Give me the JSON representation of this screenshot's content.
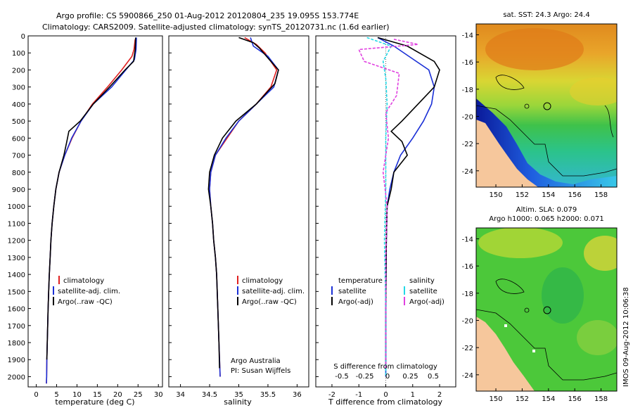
{
  "header": {
    "line1": "Argo profile: CS 5900866_250 01-Aug-2012 20120804_235 19.095S 153.774E",
    "line2": "Climatology: CARS2009. Satellite-adjusted climatology: synTS_20120731.nc (1.6d earlier)"
  },
  "side_stamp": "IMOS 09-Aug-2012 10:06:38",
  "colors": {
    "climatology": "#e02020",
    "satellite": "#1a2fd6",
    "argo": "#000000",
    "sat_s": "#22d8e6",
    "argo_s": "#e040e0",
    "land": "#f6c79c"
  },
  "chart_data": [
    {
      "type": "line",
      "name": "temperature-profile",
      "xlabel": "temperature (deg C)",
      "ylabel": "",
      "xlim": [
        -2,
        31
      ],
      "ylim": [
        2060,
        0
      ],
      "xticks": [
        0,
        5,
        10,
        15,
        20,
        25,
        30
      ],
      "yticks": [
        0,
        100,
        200,
        300,
        400,
        500,
        600,
        700,
        800,
        900,
        1000,
        1100,
        1200,
        1300,
        1400,
        1500,
        1600,
        1700,
        1800,
        1900,
        2000
      ],
      "legend": [
        "climatology",
        "satellite-adj. clim.",
        "Argo(..raw -QC)"
      ],
      "series": [
        {
          "name": "climatology",
          "color": "#e02020",
          "points": [
            [
              24.3,
              20
            ],
            [
              24.0,
              80
            ],
            [
              23.5,
              120
            ],
            [
              21.0,
              200
            ],
            [
              17.5,
              300
            ],
            [
              13.8,
              400
            ],
            [
              11.0,
              500
            ],
            [
              8.8,
              600
            ],
            [
              7.0,
              700
            ],
            [
              5.6,
              800
            ],
            [
              4.8,
              900
            ],
            [
              4.3,
              1000
            ],
            [
              3.9,
              1100
            ],
            [
              3.6,
              1200
            ],
            [
              3.4,
              1300
            ],
            [
              3.2,
              1400
            ],
            [
              3.05,
              1500
            ],
            [
              2.9,
              1600
            ],
            [
              2.8,
              1700
            ],
            [
              2.7,
              1800
            ],
            [
              2.6,
              1900
            ],
            [
              2.55,
              2000
            ],
            [
              2.5,
              2040
            ]
          ]
        },
        {
          "name": "satellite-adj. clim.",
          "color": "#1a2fd6",
          "points": [
            [
              24.6,
              10
            ],
            [
              24.5,
              80
            ],
            [
              24.1,
              140
            ],
            [
              22.0,
              200
            ],
            [
              18.5,
              300
            ],
            [
              14.0,
              400
            ],
            [
              11.0,
              500
            ],
            [
              8.7,
              600
            ],
            [
              7.0,
              700
            ],
            [
              5.6,
              800
            ],
            [
              4.8,
              900
            ],
            [
              4.3,
              1000
            ],
            [
              3.9,
              1100
            ],
            [
              3.6,
              1200
            ],
            [
              3.4,
              1300
            ],
            [
              3.2,
              1400
            ],
            [
              3.05,
              1500
            ],
            [
              2.9,
              1600
            ],
            [
              2.8,
              1700
            ],
            [
              2.7,
              1800
            ],
            [
              2.6,
              1900
            ],
            [
              2.55,
              2000
            ],
            [
              2.5,
              2040
            ]
          ]
        },
        {
          "name": "Argo(..raw -QC)",
          "color": "#000000",
          "points": [
            [
              24.4,
              10
            ],
            [
              24.3,
              80
            ],
            [
              23.9,
              150
            ],
            [
              21.8,
              200
            ],
            [
              18.0,
              300
            ],
            [
              14.0,
              400
            ],
            [
              10.8,
              500
            ],
            [
              8.0,
              560
            ],
            [
              7.5,
              620
            ],
            [
              6.8,
              700
            ],
            [
              5.6,
              800
            ],
            [
              4.8,
              900
            ],
            [
              4.3,
              1000
            ],
            [
              3.9,
              1100
            ],
            [
              3.6,
              1200
            ],
            [
              3.4,
              1300
            ],
            [
              3.2,
              1400
            ],
            [
              3.05,
              1500
            ],
            [
              2.9,
              1600
            ],
            [
              2.8,
              1700
            ],
            [
              2.7,
              1800
            ],
            [
              2.6,
              1900
            ]
          ]
        }
      ]
    },
    {
      "type": "line",
      "name": "salinity-profile",
      "xlabel": "salinity",
      "xlim": [
        33.8,
        36.2
      ],
      "ylim": [
        2060,
        0
      ],
      "xticks": [
        34,
        34.5,
        35,
        35.5,
        36
      ],
      "legend": [
        "climatology",
        "satellite-adj. clim.",
        "Argo(..raw -QC)"
      ],
      "annotations": [
        "Argo Australia",
        "PI: Susan Wijffels"
      ],
      "series": [
        {
          "name": "climatology",
          "color": "#e02020",
          "points": [
            [
              35.1,
              10
            ],
            [
              35.3,
              50
            ],
            [
              35.45,
              100
            ],
            [
              35.65,
              200
            ],
            [
              35.55,
              300
            ],
            [
              35.3,
              400
            ],
            [
              35.0,
              500
            ],
            [
              34.8,
              600
            ],
            [
              34.6,
              700
            ],
            [
              34.52,
              800
            ],
            [
              34.5,
              900
            ],
            [
              34.52,
              1000
            ],
            [
              34.55,
              1100
            ],
            [
              34.57,
              1200
            ],
            [
              34.6,
              1300
            ],
            [
              34.62,
              1400
            ],
            [
              34.64,
              1600
            ],
            [
              34.66,
              1800
            ],
            [
              34.68,
              2000
            ]
          ]
        },
        {
          "name": "satellite-adj. clim.",
          "color": "#1a2fd6",
          "points": [
            [
              35.2,
              10
            ],
            [
              35.25,
              60
            ],
            [
              35.5,
              120
            ],
            [
              35.68,
              200
            ],
            [
              35.6,
              300
            ],
            [
              35.3,
              400
            ],
            [
              35.0,
              500
            ],
            [
              34.78,
              600
            ],
            [
              34.6,
              700
            ],
            [
              34.52,
              800
            ],
            [
              34.5,
              900
            ],
            [
              34.52,
              1000
            ],
            [
              34.55,
              1100
            ],
            [
              34.57,
              1200
            ],
            [
              34.6,
              1300
            ],
            [
              34.62,
              1400
            ],
            [
              34.64,
              1600
            ],
            [
              34.66,
              1800
            ],
            [
              34.68,
              2000
            ]
          ]
        },
        {
          "name": "Argo(..raw -QC)",
          "color": "#000000",
          "points": [
            [
              35.0,
              10
            ],
            [
              35.25,
              40
            ],
            [
              35.35,
              70
            ],
            [
              35.5,
              130
            ],
            [
              35.68,
              200
            ],
            [
              35.62,
              280
            ],
            [
              35.3,
              400
            ],
            [
              34.95,
              500
            ],
            [
              34.72,
              600
            ],
            [
              34.58,
              700
            ],
            [
              34.5,
              800
            ],
            [
              34.48,
              900
            ],
            [
              34.52,
              1000
            ],
            [
              34.55,
              1100
            ],
            [
              34.57,
              1200
            ],
            [
              34.6,
              1300
            ],
            [
              34.62,
              1400
            ],
            [
              34.64,
              1600
            ],
            [
              34.66,
              1800
            ],
            [
              34.67,
              1950
            ]
          ]
        }
      ]
    },
    {
      "type": "line",
      "name": "difference-profile",
      "xlabel": "T difference from climatology",
      "xlabel_top": "S difference from climatology",
      "xlim": [
        -2.6,
        2.6
      ],
      "ylim": [
        2060,
        0
      ],
      "xticks": [
        -2,
        -1,
        0,
        1,
        2
      ],
      "xtick_labels_s": [
        "-0.5",
        "-0.25",
        "0",
        "0.25",
        "0.5"
      ],
      "legend_left": {
        "title": "temperature",
        "items": [
          "satellite",
          "Argo(-adj)"
        ]
      },
      "legend_right": {
        "title": "salinity",
        "items": [
          "satellite",
          "Argo(-adj)"
        ]
      },
      "series": [
        {
          "name": "T satellite",
          "color": "#1a2fd6",
          "points": [
            [
              -0.3,
              10
            ],
            [
              0.3,
              60
            ],
            [
              1.6,
              200
            ],
            [
              1.8,
              300
            ],
            [
              1.7,
              400
            ],
            [
              1.4,
              500
            ],
            [
              1.0,
              600
            ],
            [
              0.55,
              700
            ],
            [
              0.3,
              800
            ],
            [
              0.15,
              900
            ],
            [
              0.05,
              1000
            ],
            [
              0.02,
              1200
            ],
            [
              0.0,
              1600
            ],
            [
              0.0,
              2000
            ]
          ]
        },
        {
          "name": "T Argo(-adj)",
          "color": "#000000",
          "points": [
            [
              -0.3,
              10
            ],
            [
              0.8,
              60
            ],
            [
              1.8,
              150
            ],
            [
              2.0,
              200
            ],
            [
              1.8,
              300
            ],
            [
              1.2,
              400
            ],
            [
              0.6,
              500
            ],
            [
              0.2,
              560
            ],
            [
              0.6,
              620
            ],
            [
              0.8,
              700
            ],
            [
              0.3,
              800
            ],
            [
              0.2,
              900
            ],
            [
              0.05,
              1000
            ],
            [
              0.02,
              1200
            ],
            [
              0.0,
              1600
            ],
            [
              0.0,
              1950
            ]
          ]
        },
        {
          "name": "S satellite",
          "color": "#22d8e6",
          "points": [
            [
              -0.7,
              10
            ],
            [
              0.2,
              60
            ],
            [
              -0.1,
              150
            ],
            [
              0.0,
              250
            ],
            [
              0.05,
              400
            ],
            [
              0.0,
              600
            ],
            [
              0.0,
              900
            ],
            [
              -0.05,
              1200
            ],
            [
              0.0,
              1600
            ],
            [
              0.0,
              2000
            ]
          ]
        },
        {
          "name": "S Argo(-adj)",
          "color": "#e040e0",
          "points": [
            [
              0.3,
              20
            ],
            [
              1.2,
              50
            ],
            [
              -1.0,
              80
            ],
            [
              -0.8,
              150
            ],
            [
              0.5,
              220
            ],
            [
              0.4,
              350
            ],
            [
              0.0,
              450
            ],
            [
              0.1,
              600
            ],
            [
              -0.1,
              800
            ],
            [
              0.05,
              1000
            ],
            [
              0.0,
              1300
            ],
            [
              0.0,
              1600
            ],
            [
              0.0,
              1950
            ]
          ]
        }
      ]
    },
    {
      "type": "heatmap",
      "name": "sst-map",
      "title": "sat. SST: 24.3 Argo: 24.4",
      "xticks": [
        150,
        152,
        154,
        156,
        158
      ],
      "yticks": [
        -14,
        -16,
        -18,
        -20,
        -22,
        -24
      ],
      "xlim": [
        148.5,
        159.2
      ],
      "ylim": [
        -25.2,
        -13.2
      ],
      "marker": [
        153.774,
        -19.095
      ]
    },
    {
      "type": "heatmap",
      "name": "sla-map",
      "title_line1": "Altim. SLA: 0.079",
      "title_line2": "Argo h1000: 0.065 h2000: 0.071",
      "xticks": [
        150,
        152,
        154,
        156,
        158
      ],
      "yticks": [
        -14,
        -16,
        -18,
        -20,
        -22,
        -24
      ],
      "xlim": [
        148.5,
        159.2
      ],
      "ylim": [
        -25.2,
        -13.2
      ],
      "marker": [
        153.774,
        -19.095
      ]
    }
  ]
}
